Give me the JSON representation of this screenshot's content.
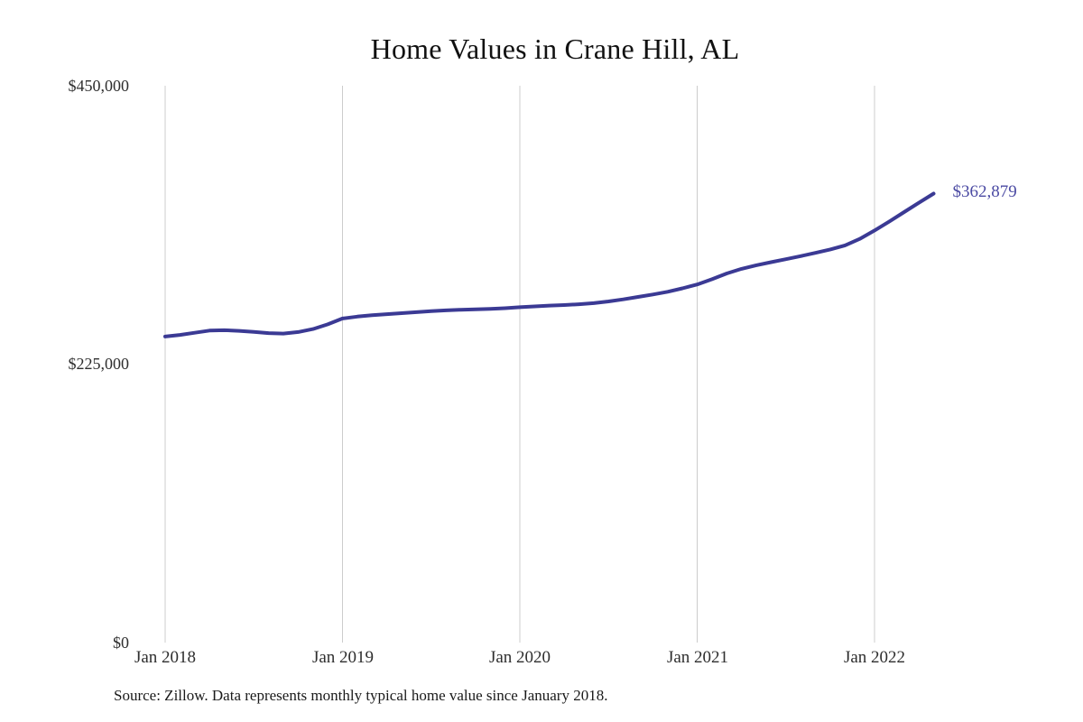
{
  "title": "Home Values in Crane Hill, AL",
  "source_note": "Source: Zillow. Data represents monthly typical home value since January 2018.",
  "colors": {
    "line": "#3b3a94",
    "end_label": "#4b4aa3",
    "grid": "#cccccc",
    "tick_text": "#2e2e2e",
    "title_text": "#111111"
  },
  "chart_data": {
    "type": "line",
    "title": "Home Values in Crane Hill, AL",
    "xlabel": "",
    "ylabel": "",
    "ylim": [
      0,
      450000
    ],
    "grid": "vertical-only",
    "legend": "none",
    "y_ticks": [
      "$450,000",
      "$225,000",
      "$0"
    ],
    "y_tick_values": [
      450000,
      225000,
      0
    ],
    "x_ticks": [
      "Jan 2018",
      "Jan 2019",
      "Jan 2020",
      "Jan 2021",
      "Jan 2022"
    ],
    "last_point_label": "$362,879",
    "last_value": 362879,
    "months": [
      "2018-01",
      "2018-02",
      "2018-03",
      "2018-04",
      "2018-05",
      "2018-06",
      "2018-07",
      "2018-08",
      "2018-09",
      "2018-10",
      "2018-11",
      "2018-12",
      "2019-01",
      "2019-02",
      "2019-03",
      "2019-04",
      "2019-05",
      "2019-06",
      "2019-07",
      "2019-08",
      "2019-09",
      "2019-10",
      "2019-11",
      "2019-12",
      "2020-01",
      "2020-02",
      "2020-03",
      "2020-04",
      "2020-05",
      "2020-06",
      "2020-07",
      "2020-08",
      "2020-09",
      "2020-10",
      "2020-11",
      "2020-12",
      "2021-01",
      "2021-02",
      "2021-03",
      "2021-04",
      "2021-05",
      "2021-06",
      "2021-07",
      "2021-08",
      "2021-09",
      "2021-10",
      "2021-11",
      "2021-12",
      "2022-01",
      "2022-02",
      "2022-03",
      "2022-04",
      "2022-05"
    ],
    "values": [
      247300,
      248600,
      250400,
      252100,
      252400,
      251900,
      251100,
      250100,
      249700,
      251000,
      253400,
      257200,
      261900,
      263400,
      264500,
      265400,
      266200,
      267000,
      267900,
      268500,
      269000,
      269300,
      269600,
      270200,
      271000,
      271700,
      272300,
      272800,
      273400,
      274300,
      275700,
      277400,
      279300,
      281300,
      283500,
      286300,
      289400,
      293600,
      298300,
      302000,
      304900,
      307400,
      309800,
      312300,
      314900,
      317700,
      321000,
      326200,
      333000,
      340300,
      347900,
      355400,
      362879
    ]
  }
}
